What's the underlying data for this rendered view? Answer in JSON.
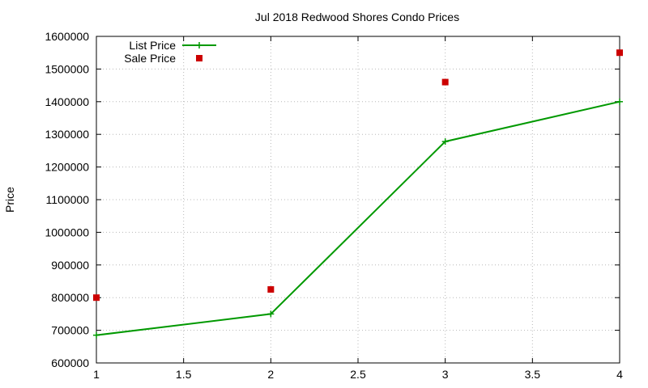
{
  "chart_data": {
    "type": "line",
    "title": "Jul 2018 Redwood Shores Condo Prices",
    "xlabel": "",
    "ylabel": "Price",
    "xlim": [
      1,
      4
    ],
    "ylim": [
      600000,
      1600000
    ],
    "x_ticks": [
      "1",
      "1.5",
      "2",
      "2.5",
      "3",
      "3.5",
      "4"
    ],
    "y_ticks": [
      "600000",
      "700000",
      "800000",
      "900000",
      "1000000",
      "1100000",
      "1200000",
      "1300000",
      "1400000",
      "1500000",
      "1600000"
    ],
    "grid": true,
    "legend_position": "top-left",
    "series": [
      {
        "name": "List Price",
        "style": "linespoints",
        "marker": "plus",
        "color": "#009900",
        "points": [
          {
            "x": 1,
            "y": 685000
          },
          {
            "x": 2,
            "y": 750000
          },
          {
            "x": 3,
            "y": 1278000
          },
          {
            "x": 4,
            "y": 1400000
          }
        ]
      },
      {
        "name": "Sale Price",
        "style": "points",
        "marker": "square",
        "color": "#cc0000",
        "points": [
          {
            "x": 1,
            "y": 800000
          },
          {
            "x": 2,
            "y": 825000
          },
          {
            "x": 3,
            "y": 1460000
          },
          {
            "x": 4,
            "y": 1550000
          }
        ]
      }
    ]
  }
}
